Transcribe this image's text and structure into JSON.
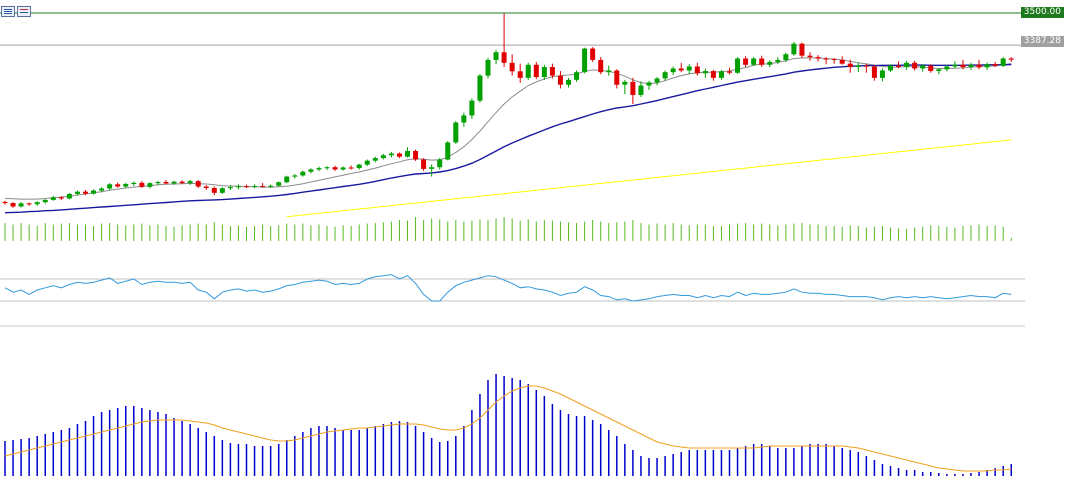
{
  "price_labels": {
    "level_line": "3500.00",
    "current_price": "3387.28"
  },
  "colors": {
    "bull": "#00a000",
    "bear": "#e00000",
    "ma_fast": "#8c8c8c",
    "ma_mid": "#1a1aa0",
    "ma_slow": "#ffff00",
    "volume": "#55bb22",
    "rsi_line": "#3399dd",
    "hist": "#0000cc",
    "signal": "#f0a020",
    "level_line": "#1f7a1f",
    "current_line": "#a0a0a0"
  },
  "chart_data": {
    "type": "candlestick",
    "price_min": 2790,
    "price_max": 3500,
    "candles": [
      [
        2836,
        2840,
        2826,
        2832
      ],
      [
        2832,
        2835,
        2815,
        2820
      ],
      [
        2820,
        2836,
        2817,
        2831
      ],
      [
        2831,
        2834,
        2822,
        2828
      ],
      [
        2828,
        2838,
        2822,
        2835
      ],
      [
        2835,
        2846,
        2830,
        2843
      ],
      [
        2843,
        2857,
        2840,
        2852
      ],
      [
        2852,
        2856,
        2842,
        2848
      ],
      [
        2848,
        2867,
        2845,
        2864
      ],
      [
        2864,
        2876,
        2859,
        2872
      ],
      [
        2872,
        2878,
        2860,
        2865
      ],
      [
        2865,
        2880,
        2862,
        2876
      ],
      [
        2876,
        2888,
        2870,
        2883
      ],
      [
        2883,
        2902,
        2878,
        2898
      ],
      [
        2898,
        2904,
        2886,
        2890
      ],
      [
        2890,
        2903,
        2885,
        2899
      ],
      [
        2899,
        2908,
        2892,
        2903
      ],
      [
        2903,
        2909,
        2885,
        2889
      ],
      [
        2889,
        2905,
        2884,
        2902
      ],
      [
        2902,
        2910,
        2895,
        2906
      ],
      [
        2906,
        2913,
        2898,
        2901
      ],
      [
        2901,
        2910,
        2896,
        2907
      ],
      [
        2907,
        2912,
        2899,
        2902
      ],
      [
        2902,
        2914,
        2896,
        2909
      ],
      [
        2909,
        2913,
        2885,
        2890
      ],
      [
        2890,
        2895,
        2878,
        2885
      ],
      [
        2885,
        2890,
        2860,
        2868
      ],
      [
        2868,
        2888,
        2864,
        2884
      ],
      [
        2884,
        2895,
        2878,
        2888
      ],
      [
        2888,
        2898,
        2880,
        2891
      ],
      [
        2891,
        2897,
        2885,
        2889
      ],
      [
        2889,
        2898,
        2884,
        2892
      ],
      [
        2892,
        2902,
        2886,
        2890
      ],
      [
        2890,
        2897,
        2885,
        2893
      ],
      [
        2893,
        2908,
        2890,
        2905
      ],
      [
        2905,
        2928,
        2902,
        2925
      ],
      [
        2925,
        2934,
        2918,
        2929
      ],
      [
        2929,
        2946,
        2925,
        2942
      ],
      [
        2942,
        2954,
        2936,
        2950
      ],
      [
        2950,
        2960,
        2944,
        2955
      ],
      [
        2955,
        2962,
        2948,
        2958
      ],
      [
        2958,
        2963,
        2945,
        2950
      ],
      [
        2950,
        2961,
        2946,
        2957
      ],
      [
        2957,
        2964,
        2950,
        2955
      ],
      [
        2955,
        2970,
        2950,
        2967
      ],
      [
        2967,
        2985,
        2962,
        2981
      ],
      [
        2981,
        2995,
        2975,
        2990
      ],
      [
        2990,
        3005,
        2985,
        3000
      ],
      [
        3000,
        3012,
        2992,
        3006
      ],
      [
        3006,
        3010,
        2990,
        2995
      ],
      [
        2995,
        3028,
        2992,
        3015
      ],
      [
        3015,
        3020,
        2980,
        2985
      ],
      [
        2985,
        2990,
        2945,
        2952
      ],
      [
        2952,
        2968,
        2925,
        2958
      ],
      [
        2958,
        2990,
        2950,
        2985
      ],
      [
        2985,
        3050,
        2982,
        3045
      ],
      [
        3045,
        3120,
        3040,
        3115
      ],
      [
        3115,
        3150,
        3100,
        3140
      ],
      [
        3140,
        3200,
        3128,
        3192
      ],
      [
        3192,
        3285,
        3185,
        3280
      ],
      [
        3280,
        3342,
        3270,
        3335
      ],
      [
        3335,
        3370,
        3320,
        3362
      ],
      [
        3362,
        3498,
        3310,
        3325
      ],
      [
        3325,
        3355,
        3280,
        3295
      ],
      [
        3295,
        3322,
        3255,
        3272
      ],
      [
        3272,
        3325,
        3265,
        3318
      ],
      [
        3318,
        3328,
        3268,
        3275
      ],
      [
        3275,
        3318,
        3265,
        3310
      ],
      [
        3310,
        3322,
        3270,
        3280
      ],
      [
        3280,
        3296,
        3235,
        3248
      ],
      [
        3248,
        3272,
        3238,
        3265
      ],
      [
        3265,
        3298,
        3258,
        3292
      ],
      [
        3292,
        3378,
        3288,
        3375
      ],
      [
        3375,
        3380,
        3328,
        3335
      ],
      [
        3335,
        3345,
        3285,
        3292
      ],
      [
        3292,
        3315,
        3280,
        3298
      ],
      [
        3298,
        3302,
        3235,
        3248
      ],
      [
        3248,
        3265,
        3215,
        3258
      ],
      [
        3258,
        3272,
        3180,
        3212
      ],
      [
        3212,
        3260,
        3205,
        3245
      ],
      [
        3245,
        3262,
        3230,
        3256
      ],
      [
        3256,
        3275,
        3246,
        3270
      ],
      [
        3270,
        3298,
        3262,
        3292
      ],
      [
        3292,
        3312,
        3282,
        3305
      ],
      [
        3305,
        3325,
        3292,
        3298
      ],
      [
        3298,
        3320,
        3285,
        3312
      ],
      [
        3312,
        3325,
        3280,
        3288
      ],
      [
        3288,
        3305,
        3272,
        3296
      ],
      [
        3296,
        3300,
        3262,
        3272
      ],
      [
        3272,
        3300,
        3265,
        3295
      ],
      [
        3295,
        3308,
        3284,
        3290
      ],
      [
        3290,
        3345,
        3286,
        3340
      ],
      [
        3340,
        3348,
        3310,
        3318
      ],
      [
        3318,
        3345,
        3314,
        3340
      ],
      [
        3340,
        3350,
        3310,
        3318
      ],
      [
        3318,
        3335,
        3310,
        3328
      ],
      [
        3328,
        3345,
        3320,
        3335
      ],
      [
        3335,
        3360,
        3328,
        3355
      ],
      [
        3355,
        3398,
        3350,
        3392
      ],
      [
        3392,
        3396,
        3342,
        3350
      ],
      [
        3350,
        3362,
        3332,
        3345
      ],
      [
        3345,
        3352,
        3330,
        3340
      ],
      [
        3340,
        3345,
        3320,
        3338
      ],
      [
        3338,
        3342,
        3322,
        3335
      ],
      [
        3335,
        3348,
        3318,
        3322
      ],
      [
        3322,
        3336,
        3290,
        3310
      ],
      [
        3310,
        3325,
        3292,
        3315
      ],
      [
        3315,
        3322,
        3290,
        3312
      ],
      [
        3312,
        3318,
        3262,
        3272
      ],
      [
        3272,
        3305,
        3260,
        3298
      ],
      [
        3298,
        3320,
        3292,
        3315
      ],
      [
        3315,
        3330,
        3306,
        3310
      ],
      [
        3310,
        3332,
        3300,
        3325
      ],
      [
        3325,
        3332,
        3298,
        3305
      ],
      [
        3305,
        3320,
        3294,
        3315
      ],
      [
        3315,
        3320,
        3290,
        3296
      ],
      [
        3296,
        3306,
        3285,
        3302
      ],
      [
        3302,
        3318,
        3295,
        3312
      ],
      [
        3312,
        3330,
        3305,
        3318
      ],
      [
        3318,
        3335,
        3302,
        3310
      ],
      [
        3310,
        3325,
        3300,
        3318
      ],
      [
        3318,
        3335,
        3302,
        3309
      ],
      [
        3309,
        3326,
        3300,
        3320
      ],
      [
        3320,
        3328,
        3310,
        3314
      ],
      [
        3314,
        3345,
        3310,
        3340
      ],
      [
        3340,
        3345,
        3328,
        3336
      ]
    ],
    "ma_fast": [
      2848,
      2847,
      2846,
      2846,
      2846,
      2848,
      2851,
      2853,
      2856,
      2860,
      2864,
      2868,
      2872,
      2877,
      2881,
      2885,
      2888,
      2891,
      2893,
      2896,
      2898,
      2899,
      2900,
      2901,
      2900,
      2899,
      2896,
      2893,
      2892,
      2891,
      2890,
      2889,
      2888,
      2888,
      2889,
      2891,
      2895,
      2900,
      2906,
      2912,
      2918,
      2924,
      2930,
      2936,
      2941,
      2948,
      2955,
      2963,
      2970,
      2977,
      2984,
      2988,
      2986,
      2983,
      2984,
      2993,
      3010,
      3030,
      3055,
      3085,
      3118,
      3150,
      3180,
      3205,
      3225,
      3245,
      3258,
      3268,
      3276,
      3280,
      3282,
      3285,
      3295,
      3300,
      3298,
      3295,
      3288,
      3278,
      3265,
      3255,
      3252,
      3254,
      3262,
      3272,
      3280,
      3286,
      3290,
      3292,
      3292,
      3294,
      3296,
      3303,
      3308,
      3316,
      3320,
      3322,
      3326,
      3332,
      3340,
      3342,
      3343,
      3342,
      3340,
      3338,
      3335,
      3330,
      3325,
      3321,
      3316,
      3312,
      3310,
      3310,
      3312,
      3311,
      3310,
      3307,
      3305,
      3305,
      3306,
      3307,
      3310,
      3312,
      3313,
      3314,
      3318,
      3322
    ],
    "ma_mid": [
      2798,
      2799,
      2800,
      2802,
      2803,
      2805,
      2806,
      2808,
      2810,
      2812,
      2814,
      2816,
      2818,
      2820,
      2822,
      2824,
      2826,
      2828,
      2830,
      2832,
      2834,
      2836,
      2838,
      2840,
      2841,
      2842,
      2843,
      2844,
      2846,
      2848,
      2850,
      2852,
      2854,
      2856,
      2859,
      2862,
      2866,
      2870,
      2874,
      2878,
      2882,
      2886,
      2890,
      2894,
      2898,
      2903,
      2908,
      2914,
      2920,
      2925,
      2930,
      2934,
      2936,
      2938,
      2941,
      2946,
      2953,
      2962,
      2972,
      2985,
      3000,
      3015,
      3030,
      3043,
      3055,
      3067,
      3078,
      3089,
      3100,
      3110,
      3118,
      3127,
      3136,
      3145,
      3153,
      3160,
      3166,
      3170,
      3174,
      3180,
      3186,
      3192,
      3199,
      3206,
      3213,
      3220,
      3227,
      3233,
      3239,
      3245,
      3251,
      3257,
      3262,
      3267,
      3272,
      3276,
      3281,
      3286,
      3292,
      3296,
      3300,
      3303,
      3306,
      3309,
      3311,
      3313,
      3314,
      3315,
      3315,
      3316,
      3316,
      3316,
      3317,
      3317,
      3317,
      3316,
      3316,
      3316,
      3316,
      3316,
      3317,
      3317,
      3318,
      3318,
      3318,
      3319
    ],
    "ma_slow": [
      2680,
      2683,
      2686,
      2689,
      2692,
      2695,
      2698,
      2700,
      2703,
      2706,
      2709,
      2712,
      2715,
      2718,
      2721,
      2724,
      2727,
      2730,
      2733,
      2736,
      2739,
      2742,
      2745,
      2748,
      2751,
      2754,
      2757,
      2760,
      2763,
      2766,
      2769,
      2772,
      2775,
      2778,
      2781,
      2784,
      2787,
      2790,
      2793,
      2796,
      2799,
      2802,
      2805,
      2808,
      2811,
      2814,
      2817,
      2820,
      2823,
      2826,
      2829,
      2832,
      2835,
      2838,
      2841,
      2844,
      2847,
      2850,
      2853,
      2856,
      2859,
      2862,
      2865,
      2868,
      2871,
      2874,
      2877,
      2880,
      2883,
      2886,
      2889,
      2892,
      2895,
      2898,
      2901,
      2904,
      2907,
      2910,
      2913,
      2916,
      2919,
      2922,
      2925,
      2928,
      2931,
      2934,
      2937,
      2940,
      2943,
      2946,
      2949,
      2952,
      2955,
      2958,
      2961,
      2964,
      2967,
      2970,
      2973,
      2976,
      2979,
      2982,
      2985,
      2988,
      2991,
      2994,
      2997,
      3000,
      3003,
      3006,
      3009,
      3012,
      3015,
      3018,
      3021,
      3024,
      3027,
      3030,
      3033,
      3036,
      3039,
      3042,
      3045,
      3048,
      3051,
      3054
    ],
    "volume": [
      60,
      55,
      60,
      55,
      50,
      60,
      55,
      58,
      60,
      55,
      55,
      50,
      58,
      60,
      55,
      52,
      55,
      58,
      52,
      55,
      50,
      48,
      52,
      55,
      58,
      55,
      62,
      55,
      50,
      52,
      48,
      50,
      55,
      50,
      52,
      58,
      55,
      58,
      52,
      55,
      50,
      48,
      52,
      50,
      55,
      58,
      60,
      62,
      65,
      70,
      68,
      80,
      70,
      75,
      72,
      65,
      70,
      65,
      68,
      72,
      70,
      75,
      80,
      75,
      68,
      72,
      65,
      70,
      68,
      65,
      62,
      60,
      65,
      70,
      65,
      60,
      62,
      65,
      70,
      60,
      55,
      58,
      55,
      60,
      55,
      52,
      55,
      55,
      50,
      50,
      55,
      58,
      60,
      55,
      58,
      55,
      52,
      55,
      58,
      60,
      55,
      55,
      50,
      50,
      48,
      52,
      50,
      45,
      48,
      50,
      45,
      42,
      40,
      45,
      48,
      52,
      50,
      48,
      45,
      50,
      52,
      55,
      50,
      52,
      48,
      10
    ],
    "rsi": [
      62,
      58,
      60,
      56,
      60,
      62,
      64,
      62,
      65,
      67,
      66,
      67,
      69,
      71,
      66,
      68,
      70,
      65,
      67,
      68,
      67,
      67,
      66,
      67,
      60,
      58,
      52,
      58,
      60,
      61,
      59,
      60,
      58,
      59,
      61,
      64,
      65,
      67,
      68,
      69,
      68,
      65,
      66,
      65,
      66,
      70,
      72,
      73,
      74,
      70,
      73,
      66,
      56,
      50,
      50,
      58,
      64,
      67,
      69,
      71,
      73,
      72,
      69,
      66,
      62,
      63,
      61,
      60,
      58,
      55,
      57,
      58,
      63,
      60,
      55,
      54,
      51,
      52,
      50,
      51,
      52,
      54,
      55,
      56,
      55,
      55,
      53,
      55,
      53,
      55,
      54,
      58,
      55,
      57,
      56,
      56,
      57,
      58,
      61,
      58,
      57,
      57,
      56,
      56,
      55,
      54,
      54,
      54,
      53,
      51,
      53,
      54,
      53,
      54,
      53,
      54,
      53,
      52,
      53,
      54,
      55,
      54,
      54,
      53,
      57,
      56
    ],
    "macd_hist": [
      35,
      36,
      37,
      38,
      40,
      42,
      44,
      46,
      48,
      52,
      55,
      60,
      64,
      66,
      68,
      70,
      70,
      68,
      66,
      64,
      62,
      58,
      55,
      52,
      48,
      44,
      40,
      36,
      33,
      32,
      32,
      30,
      30,
      30,
      32,
      36,
      40,
      44,
      48,
      50,
      50,
      48,
      46,
      46,
      46,
      48,
      50,
      52,
      54,
      55,
      54,
      50,
      44,
      38,
      34,
      35,
      40,
      50,
      66,
      82,
      96,
      102,
      100,
      98,
      96,
      92,
      86,
      80,
      72,
      66,
      62,
      60,
      60,
      56,
      52,
      46,
      40,
      32,
      26,
      20,
      18,
      18,
      20,
      22,
      24,
      26,
      26,
      26,
      26,
      26,
      26,
      28,
      30,
      32,
      32,
      30,
      28,
      28,
      28,
      30,
      32,
      32,
      32,
      30,
      28,
      26,
      24,
      20,
      16,
      12,
      10,
      8,
      6,
      6,
      4,
      4,
      3,
      2,
      2,
      2,
      3,
      4,
      6,
      8,
      10,
      12
    ],
    "macd_signal": [
      20,
      22,
      24,
      26,
      28,
      30,
      32,
      34,
      36,
      38,
      40,
      42,
      44,
      46,
      48,
      50,
      52,
      54,
      55,
      56,
      56,
      56,
      56,
      55,
      54,
      53,
      51,
      48,
      46,
      44,
      42,
      40,
      38,
      36,
      35,
      35,
      36,
      38,
      40,
      42,
      44,
      45,
      46,
      47,
      48,
      48,
      49,
      50,
      51,
      52,
      52,
      52,
      51,
      49,
      47,
      46,
      46,
      48,
      52,
      58,
      66,
      74,
      80,
      85,
      88,
      90,
      90,
      88,
      85,
      82,
      78,
      74,
      70,
      66,
      62,
      58,
      54,
      50,
      46,
      42,
      38,
      34,
      32,
      30,
      29,
      28,
      28,
      28,
      28,
      28,
      28,
      28,
      28,
      28,
      29,
      30,
      30,
      30,
      30,
      30,
      30,
      30,
      30,
      30,
      30,
      29,
      28,
      26,
      24,
      22,
      20,
      18,
      16,
      14,
      12,
      10,
      8,
      7,
      6,
      5,
      5,
      5,
      5,
      6,
      6,
      7
    ],
    "level_line": 3500,
    "current_price": 3387.28
  }
}
